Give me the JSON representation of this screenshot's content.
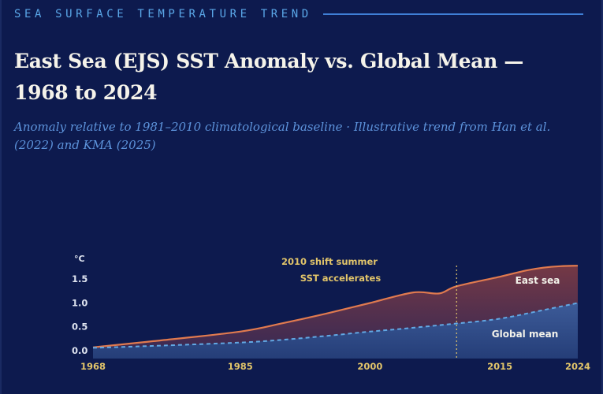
{
  "header": {
    "eyebrow": "SEA SURFACE TEMPERATURE TREND",
    "title": "East Sea (EJS) SST Anomaly vs. Global Mean — 1968 to 2024",
    "subtitle": "Anomaly relative to 1981–2010 climatological baseline · Illustrative trend from Han et al. (2022) and KMA (2025)"
  },
  "colors": {
    "background": "#0d1a4e",
    "accent": "#3f7fd6",
    "east_sea_line": "#e07a4f",
    "global_line": "#62a8e4",
    "annotation": "#e2c56a"
  },
  "chart_data": {
    "type": "area",
    "title": "East Sea (EJS) SST Anomaly vs. Global Mean — 1968 to 2024",
    "ylabel": "°C",
    "xlabel": "",
    "x_ticks": [
      1968,
      1985,
      2000,
      2015,
      2024
    ],
    "y_ticks": [
      "0.0",
      "0.5",
      "1.0",
      "1.5"
    ],
    "xlim": [
      1968,
      2024
    ],
    "ylim": [
      0,
      1.85
    ],
    "series": [
      {
        "name": "East sea",
        "label": "East sea",
        "style": "solid",
        "x": [
          1968,
          1975,
          1985,
          1990,
          1995,
          2000,
          2005,
          2008,
          2010,
          2015,
          2018,
          2020,
          2022,
          2024
        ],
        "values": [
          0.07,
          0.2,
          0.4,
          0.58,
          0.78,
          1.0,
          1.22,
          1.2,
          1.35,
          1.55,
          1.68,
          1.74,
          1.77,
          1.78
        ]
      },
      {
        "name": "Global mean",
        "label": "Global mean",
        "style": "dashed",
        "x": [
          1968,
          1975,
          1985,
          1990,
          1995,
          2000,
          2005,
          2010,
          2015,
          2020,
          2024
        ],
        "values": [
          0.06,
          0.1,
          0.17,
          0.23,
          0.31,
          0.4,
          0.48,
          0.57,
          0.67,
          0.85,
          1.0
        ]
      }
    ],
    "annotations": [
      {
        "year": 2010,
        "text_line1": "2010 shift summer",
        "text_line2": "SST accelerates"
      }
    ]
  }
}
